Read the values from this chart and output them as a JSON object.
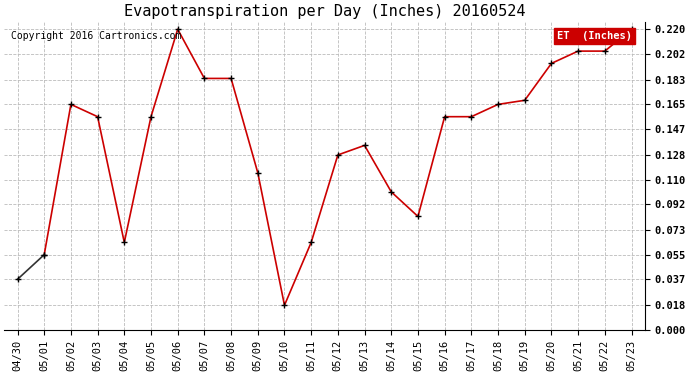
{
  "title": "Evapotranspiration per Day (Inches) 20160524",
  "copyright_text": "Copyright 2016 Cartronics.com",
  "legend_label": "ET  (Inches)",
  "x_labels": [
    "04/30",
    "05/01",
    "05/02",
    "05/03",
    "05/04",
    "05/05",
    "05/06",
    "05/07",
    "05/08",
    "05/09",
    "05/10",
    "05/11",
    "05/12",
    "05/13",
    "05/14",
    "05/15",
    "05/16",
    "05/17",
    "05/18",
    "05/19",
    "05/20",
    "05/21",
    "05/22",
    "05/23"
  ],
  "y_values": [
    0.037,
    0.055,
    0.165,
    0.156,
    0.064,
    0.156,
    0.22,
    0.184,
    0.184,
    0.115,
    0.018,
    0.064,
    0.128,
    0.135,
    0.101,
    0.083,
    0.156,
    0.156,
    0.165,
    0.168,
    0.195,
    0.204,
    0.204,
    0.22
  ],
  "y_ticks": [
    0.0,
    0.018,
    0.037,
    0.055,
    0.073,
    0.092,
    0.11,
    0.128,
    0.147,
    0.165,
    0.183,
    0.202,
    0.22
  ],
  "line_color": "#cc0000",
  "first_point_color": "#333333",
  "marker_color": "#000000",
  "bg_color": "#ffffff",
  "grid_color": "#bbbbbb",
  "legend_bg": "#cc0000",
  "legend_text_color": "#ffffff",
  "title_fontsize": 11,
  "copyright_fontsize": 7,
  "tick_fontsize": 7.5,
  "ylim": [
    0.0,
    0.2255
  ]
}
